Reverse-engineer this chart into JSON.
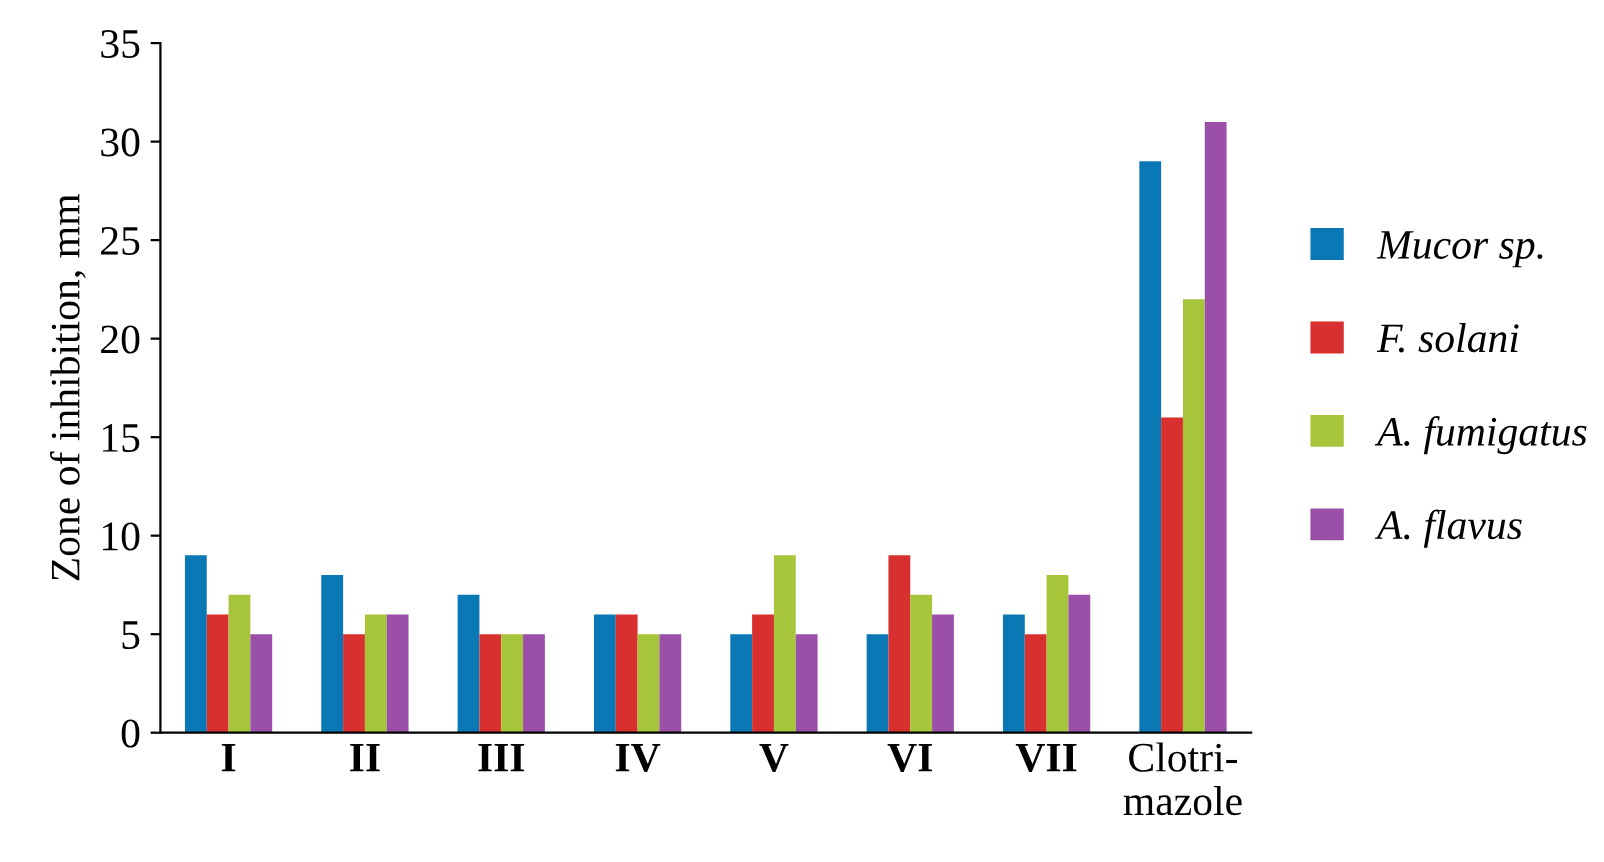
{
  "chart_data": {
    "type": "bar",
    "ylabel": "Zone of inhibition, mm",
    "categories": [
      "I",
      "II",
      "III",
      "IV",
      "V",
      "VI",
      "VII",
      "Clotri-\nmazole"
    ],
    "series": [
      {
        "name": "Mucor sp.",
        "color": "#0a78b4",
        "values": [
          9,
          8,
          7,
          6,
          5,
          5,
          6,
          29
        ]
      },
      {
        "name": "F. solani",
        "color": "#d7302f",
        "values": [
          6,
          5,
          5,
          6,
          6,
          9,
          5,
          16
        ]
      },
      {
        "name": "A. fumigatus",
        "color": "#a6c53a",
        "values": [
          7,
          6,
          5,
          5,
          9,
          7,
          8,
          22
        ]
      },
      {
        "name": "A. flavus",
        "color": "#9a4fa8",
        "values": [
          5,
          6,
          5,
          5,
          5,
          6,
          7,
          31
        ]
      }
    ],
    "ylim": [
      0,
      35
    ],
    "yticks": [
      0,
      5,
      10,
      15,
      20,
      25,
      30,
      35
    ],
    "grid": false,
    "legend": "right"
  }
}
